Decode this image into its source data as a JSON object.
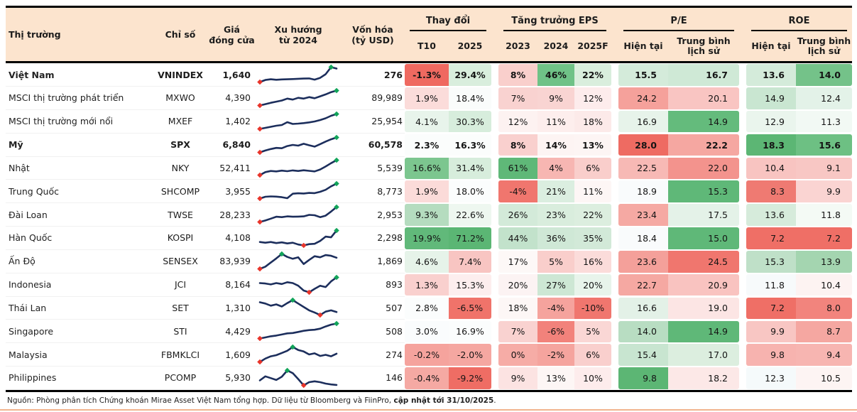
{
  "colors": {
    "header_bg": "#fce4ce",
    "table_border": "#000000",
    "spark_line": "#1c2e5c",
    "spark_max_marker": "#12a45a",
    "spark_min_marker": "#e8342a",
    "footer_rule": "#f2b48e"
  },
  "table": {
    "columns": {
      "market": "Thị trường",
      "index": "Chỉ số",
      "price": "Giá\nđóng cửa",
      "trend": "Xu hướng\ntừ 2024",
      "mcap": "Vốn hóa\n(tỷ USD)",
      "groups": [
        {
          "label": "Thay đổi",
          "cols": [
            "T10",
            "2025"
          ]
        },
        {
          "label": "Tăng trưởng EPS",
          "cols": [
            "2023",
            "2024",
            "2025F"
          ]
        },
        {
          "label": "P/E",
          "cols": [
            "Hiện tại",
            "Trung bình\nlịch sử"
          ]
        },
        {
          "label": "ROE",
          "cols": [
            "Hiện tại",
            "Trung bình\nlịch sử"
          ]
        }
      ]
    },
    "rows": [
      {
        "market": "Việt Nam",
        "bold": true,
        "index": "VNINDEX",
        "price": "1,640",
        "mcap": "276",
        "spark": [
          1.0,
          2.2,
          2.6,
          2.3,
          2.5,
          2.6,
          2.7,
          2.9,
          3.0,
          3.1,
          2.4,
          3.4,
          5.5,
          9.6,
          8.8
        ],
        "heat": [
          [
            "-1.3%",
            "#ef6960"
          ],
          [
            "29.4%",
            "#d9eedd"
          ],
          [
            "8%",
            "#f9cfcc"
          ],
          [
            "46%",
            "#6fc287"
          ],
          [
            "22%",
            "#d9eedd"
          ],
          [
            "15.5",
            "#d4ebda"
          ],
          [
            "16.7",
            "#cfe9d6"
          ],
          [
            "13.6",
            "#d4ebda"
          ],
          [
            "14.0",
            "#74c289"
          ]
        ]
      },
      {
        "market": "MSCI thị trường phát triển",
        "bold": false,
        "index": "MXWO",
        "price": "4,390",
        "mcap": "89,989",
        "spark": [
          0.8,
          1.5,
          2.2,
          2.8,
          3.4,
          4.4,
          3.9,
          4.8,
          4.4,
          5.2,
          4.6,
          5.6,
          6.6,
          7.8,
          8.6
        ],
        "heat": [
          [
            "1.9%",
            "#fbdcda"
          ],
          [
            "18.4%",
            "#fafcfb"
          ],
          [
            "7%",
            "#f9d2d0"
          ],
          [
            "9%",
            "#f9d4d2"
          ],
          [
            "12%",
            "#fdecec"
          ],
          [
            "24.2",
            "#f5a19b"
          ],
          [
            "20.1",
            "#f9c5c2"
          ],
          [
            "14.9",
            "#c9e6d1"
          ],
          [
            "12.4",
            "#e3f2e8"
          ]
        ]
      },
      {
        "market": "MSCI thị trường mới nổi",
        "bold": false,
        "index": "MXEF",
        "price": "1,402",
        "mcap": "25,954",
        "spark": [
          0.6,
          1.2,
          1.8,
          2.4,
          2.8,
          4.4,
          3.4,
          3.6,
          3.9,
          4.3,
          4.8,
          5.6,
          6.6,
          8.0,
          9.0
        ],
        "heat": [
          [
            "4.1%",
            "#e8f4eb"
          ],
          [
            "30.3%",
            "#d7eddc"
          ],
          [
            "12%",
            "#fdf2f1"
          ],
          [
            "11%",
            "#fdeeed"
          ],
          [
            "18%",
            "#fceae9"
          ],
          [
            "16.9",
            "#e7f3ea"
          ],
          [
            "14.9",
            "#64bb7c"
          ],
          [
            "12.9",
            "#eaf5ed"
          ],
          [
            "11.3",
            "#f2f9f4"
          ]
        ]
      },
      {
        "market": "Mỹ",
        "bold": true,
        "index": "SPX",
        "price": "6,840",
        "mcap": "60,578",
        "spark": [
          0.8,
          1.8,
          2.6,
          3.2,
          3.0,
          4.2,
          4.8,
          4.4,
          5.4,
          4.6,
          3.9,
          5.2,
          6.6,
          7.8,
          8.8
        ],
        "heat": [
          [
            "2.3%",
            "#fbfdfc"
          ],
          [
            "16.3%",
            "#fbfdfc"
          ],
          [
            "8%",
            "#f9d0ce"
          ],
          [
            "14%",
            "#fdf4f3"
          ],
          [
            "13%",
            "#fdf5f4"
          ],
          [
            "28.0",
            "#ee6b62"
          ],
          [
            "22.2",
            "#f5a7a1"
          ],
          [
            "18.3",
            "#5cb674"
          ],
          [
            "15.6",
            "#6dc083"
          ]
        ]
      },
      {
        "market": "Nhật",
        "bold": false,
        "index": "NKY",
        "price": "52,411",
        "mcap": "5,539",
        "spark": [
          1.2,
          2.8,
          3.4,
          3.2,
          3.6,
          3.3,
          3.7,
          3.4,
          3.8,
          3.5,
          3.2,
          4.2,
          5.8,
          7.6,
          9.2
        ],
        "heat": [
          [
            "16.6%",
            "#7cc68f"
          ],
          [
            "31.4%",
            "#d7eddc"
          ],
          [
            "61%",
            "#5fb878"
          ],
          [
            "4%",
            "#f7b6b2"
          ],
          [
            "6%",
            "#f9cecb"
          ],
          [
            "22.5",
            "#f7b9b5"
          ],
          [
            "22.0",
            "#f3938d"
          ],
          [
            "10.4",
            "#f8c4c1"
          ],
          [
            "9.1",
            "#f8c7c4"
          ]
        ]
      },
      {
        "market": "Trung Quốc",
        "bold": false,
        "index": "SHCOMP",
        "price": "3,955",
        "mcap": "8,773",
        "spark": [
          0.9,
          1.8,
          2.0,
          1.9,
          1.6,
          1.1,
          3.4,
          3.6,
          3.5,
          3.8,
          3.7,
          4.4,
          5.4,
          7.2,
          8.6
        ],
        "heat": [
          [
            "1.9%",
            "#fbdbd9"
          ],
          [
            "18.0%",
            "#fbfdfd"
          ],
          [
            "-4%",
            "#f0766e"
          ],
          [
            "21%",
            "#dbeee0"
          ],
          [
            "11%",
            "#fdf6f5"
          ],
          [
            "18.9",
            "#f9fbfc"
          ],
          [
            "15.3",
            "#5fb878"
          ],
          [
            "8.3",
            "#ef7a72"
          ],
          [
            "9.9",
            "#fad4d2"
          ]
        ]
      },
      {
        "market": "Đài Loan",
        "bold": false,
        "index": "TWSE",
        "price": "28,233",
        "mcap": "2,953",
        "spark": [
          0.8,
          1.6,
          2.6,
          3.6,
          3.4,
          3.8,
          3.6,
          3.7,
          3.8,
          4.6,
          4.4,
          3.4,
          4.2,
          6.4,
          8.8
        ],
        "heat": [
          [
            "9.3%",
            "#b5dcbf"
          ],
          [
            "22.6%",
            "#eef7f0"
          ],
          [
            "26%",
            "#d3ead9"
          ],
          [
            "23%",
            "#d9eddd"
          ],
          [
            "22%",
            "#dceedf"
          ],
          [
            "23.4",
            "#f5a9a3"
          ],
          [
            "17.5",
            "#e4f2e8"
          ],
          [
            "13.6",
            "#d6ebdb"
          ],
          [
            "11.8",
            "#f4faf5"
          ]
        ]
      },
      {
        "market": "Hàn Quốc",
        "bold": false,
        "index": "KOSPI",
        "price": "4,108",
        "mcap": "2,298",
        "spark": [
          3.0,
          2.6,
          3.0,
          2.4,
          2.8,
          2.2,
          2.6,
          1.6,
          1.1,
          1.8,
          2.0,
          3.6,
          6.0,
          5.6,
          9.4
        ],
        "heat": [
          [
            "19.9%",
            "#61b97a"
          ],
          [
            "71.2%",
            "#5bb674"
          ],
          [
            "44%",
            "#c2e2cb"
          ],
          [
            "36%",
            "#cfe8d6"
          ],
          [
            "35%",
            "#d2e9d8"
          ],
          [
            "18.4",
            "#f9fbfc"
          ],
          [
            "15.0",
            "#5fb878"
          ],
          [
            "7.2",
            "#ef6f66"
          ],
          [
            "7.2",
            "#ef6f66"
          ]
        ]
      },
      {
        "market": "Ấn Độ",
        "bold": false,
        "index": "SENSEX",
        "price": "83,939",
        "mcap": "1,869",
        "spark": [
          0.8,
          2.0,
          4.2,
          6.4,
          8.8,
          7.2,
          6.2,
          7.0,
          3.4,
          5.6,
          7.6,
          7.0,
          8.2,
          7.8,
          6.8
        ],
        "heat": [
          [
            "4.6%",
            "#e6f3e9"
          ],
          [
            "7.4%",
            "#f8c5c2"
          ],
          [
            "17%",
            "#fdf8f7"
          ],
          [
            "5%",
            "#f9cecb"
          ],
          [
            "16%",
            "#fbdcda"
          ],
          [
            "23.6",
            "#f4a09a"
          ],
          [
            "24.5",
            "#f0766e"
          ],
          [
            "15.3",
            "#bfe0c8"
          ],
          [
            "13.9",
            "#a4d5b0"
          ]
        ]
      },
      {
        "market": "Indonesia",
        "bold": false,
        "index": "JCI",
        "price": "8,164",
        "mcap": "893",
        "spark": [
          5.6,
          5.4,
          5.0,
          5.6,
          5.2,
          6.0,
          5.6,
          4.4,
          2.2,
          1.4,
          3.0,
          4.4,
          3.8,
          6.4,
          8.2
        ],
        "heat": [
          [
            "1.3%",
            "#f9d0ce"
          ],
          [
            "15.3%",
            "#fdeeee"
          ],
          [
            "20%",
            "#fcf3f3"
          ],
          [
            "27%",
            "#cde7d4"
          ],
          [
            "20%",
            "#e8f4eb"
          ],
          [
            "22.7",
            "#f5a8a2"
          ],
          [
            "20.9",
            "#f9c3c0"
          ],
          [
            "11.8",
            "#f7fafb"
          ],
          [
            "10.4",
            "#fdf3f2"
          ]
        ]
      },
      {
        "market": "Thái Lan",
        "bold": false,
        "index": "SET",
        "price": "1,310",
        "mcap": "507",
        "spark": [
          7.2,
          6.6,
          5.6,
          6.2,
          5.2,
          6.8,
          8.2,
          6.6,
          5.0,
          3.4,
          2.4,
          1.2,
          2.8,
          3.4,
          2.6
        ],
        "heat": [
          [
            "2.8%",
            "#fbfdfd"
          ],
          [
            "-6.5%",
            "#f0736a"
          ],
          [
            "18%",
            "#fdf7f6"
          ],
          [
            "-4%",
            "#f5a39d"
          ],
          [
            "-10%",
            "#f0766e"
          ],
          [
            "16.6",
            "#e3f1e7"
          ],
          [
            "19.0",
            "#fce5e4"
          ],
          [
            "7.2",
            "#ef6f66"
          ],
          [
            "8.0",
            "#f2847d"
          ]
        ]
      },
      {
        "market": "Singapore",
        "bold": false,
        "index": "STI",
        "price": "4,429",
        "mcap": "508",
        "spark": [
          0.8,
          1.4,
          2.0,
          2.4,
          3.0,
          3.6,
          3.8,
          4.4,
          5.0,
          5.4,
          5.6,
          6.2,
          7.4,
          8.4,
          9.0
        ],
        "heat": [
          [
            "3.0%",
            "#fafcfd"
          ],
          [
            "16.9%",
            "#fbfdfd"
          ],
          [
            "7%",
            "#f9d2d0"
          ],
          [
            "-6%",
            "#f2827b"
          ],
          [
            "5%",
            "#fad7d5"
          ],
          [
            "14.0",
            "#b8ddc2"
          ],
          [
            "14.9",
            "#5fb878"
          ],
          [
            "9.9",
            "#f8c6c3"
          ],
          [
            "8.7",
            "#f5a7a1"
          ]
        ]
      },
      {
        "market": "Malaysia",
        "bold": false,
        "index": "FBMKLCI",
        "price": "1,609",
        "mcap": "274",
        "spark": [
          0.6,
          2.4,
          3.6,
          4.2,
          5.4,
          6.6,
          8.6,
          7.0,
          6.2,
          4.6,
          5.2,
          3.8,
          4.4,
          3.6,
          5.0
        ],
        "heat": [
          [
            "-0.2%",
            "#f5a39d"
          ],
          [
            "-2.0%",
            "#f5a7a1"
          ],
          [
            "0%",
            "#f6aca6"
          ],
          [
            "-2%",
            "#f5a49e"
          ],
          [
            "6%",
            "#f9cfcd"
          ],
          [
            "15.4",
            "#c8e5d0"
          ],
          [
            "17.0",
            "#dceedf"
          ],
          [
            "9.8",
            "#f7b3af"
          ],
          [
            "9.4",
            "#f7b5b1"
          ]
        ]
      },
      {
        "market": "Philippines",
        "bold": false,
        "index": "PCOMP",
        "price": "5,930",
        "mcap": "146",
        "spark": [
          3.4,
          5.2,
          4.4,
          3.6,
          5.0,
          7.8,
          6.6,
          4.0,
          1.2,
          2.6,
          3.0,
          2.6,
          2.0,
          1.6,
          1.4
        ],
        "heat": [
          [
            "-0.4%",
            "#f5a9a3"
          ],
          [
            "-9.2%",
            "#ef6d64"
          ],
          [
            "9%",
            "#fce3e2"
          ],
          [
            "13%",
            "#fdf6f5"
          ],
          [
            "10%",
            "#fdecec"
          ],
          [
            "9.8",
            "#5cb674"
          ],
          [
            "18.2",
            "#fce8e7"
          ],
          [
            "12.3",
            "#f5fafb"
          ],
          [
            "10.5",
            "#fdf4f3"
          ]
        ]
      }
    ]
  },
  "footer": {
    "source_prefix": "Nguồn: Phòng phân tích Chứng khoán Mirae Asset Việt Nam tổng hợp. Dữ liệu từ Bloomberg và FiinPro, ",
    "source_bold": "cập nhật tới 31/10/2025",
    "source_suffix": "."
  },
  "chart_data": {
    "type": "table",
    "title": "",
    "sparkline_column": "Xu hướng từ 2024 (navy price line per row; green diamond = maximum, red diamond = minimum)",
    "columns": [
      "Thị trường",
      "Chỉ số",
      "Giá đóng cửa",
      "Vốn hóa (tỷ USD)",
      "Thay đổi T10",
      "Thay đổi 2025",
      "Tăng trưởng EPS 2023",
      "Tăng trưởng EPS 2024",
      "Tăng trưởng EPS 2025F",
      "P/E Hiện tại",
      "P/E Trung bình lịch sử",
      "ROE Hiện tại",
      "ROE Trung bình lịch sử"
    ],
    "rows": [
      [
        "Việt Nam",
        "VNINDEX",
        "1,640",
        "276",
        "-1.3%",
        "29.4%",
        "8%",
        "46%",
        "22%",
        "15.5",
        "16.7",
        "13.6",
        "14.0"
      ],
      [
        "MSCI thị trường phát triển",
        "MXWO",
        "4,390",
        "89,989",
        "1.9%",
        "18.4%",
        "7%",
        "9%",
        "12%",
        "24.2",
        "20.1",
        "14.9",
        "12.4"
      ],
      [
        "MSCI thị trường mới nổi",
        "MXEF",
        "1,402",
        "25,954",
        "4.1%",
        "30.3%",
        "12%",
        "11%",
        "18%",
        "16.9",
        "14.9",
        "12.9",
        "11.3"
      ],
      [
        "Mỹ",
        "SPX",
        "6,840",
        "60,578",
        "2.3%",
        "16.3%",
        "8%",
        "14%",
        "13%",
        "28.0",
        "22.2",
        "18.3",
        "15.6"
      ],
      [
        "Nhật",
        "NKY",
        "52,411",
        "5,539",
        "16.6%",
        "31.4%",
        "61%",
        "4%",
        "6%",
        "22.5",
        "22.0",
        "10.4",
        "9.1"
      ],
      [
        "Trung Quốc",
        "SHCOMP",
        "3,955",
        "8,773",
        "1.9%",
        "18.0%",
        "-4%",
        "21%",
        "11%",
        "18.9",
        "15.3",
        "8.3",
        "9.9"
      ],
      [
        "Đài Loan",
        "TWSE",
        "28,233",
        "2,953",
        "9.3%",
        "22.6%",
        "26%",
        "23%",
        "22%",
        "23.4",
        "17.5",
        "13.6",
        "11.8"
      ],
      [
        "Hàn Quốc",
        "KOSPI",
        "4,108",
        "2,298",
        "19.9%",
        "71.2%",
        "44%",
        "36%",
        "35%",
        "18.4",
        "15.0",
        "7.2",
        "7.2"
      ],
      [
        "Ấn Độ",
        "SENSEX",
        "83,939",
        "1,869",
        "4.6%",
        "7.4%",
        "17%",
        "5%",
        "16%",
        "23.6",
        "24.5",
        "15.3",
        "13.9"
      ],
      [
        "Indonesia",
        "JCI",
        "8,164",
        "893",
        "1.3%",
        "15.3%",
        "20%",
        "27%",
        "20%",
        "22.7",
        "20.9",
        "11.8",
        "10.4"
      ],
      [
        "Thái Lan",
        "SET",
        "1,310",
        "507",
        "2.8%",
        "-6.5%",
        "18%",
        "-4%",
        "-10%",
        "16.6",
        "19.0",
        "7.2",
        "8.0"
      ],
      [
        "Singapore",
        "STI",
        "4,429",
        "508",
        "3.0%",
        "16.9%",
        "7%",
        "-6%",
        "5%",
        "14.0",
        "14.9",
        "9.9",
        "8.7"
      ],
      [
        "Malaysia",
        "FBMKLCI",
        "1,609",
        "274",
        "-0.2%",
        "-2.0%",
        "0%",
        "-2%",
        "6%",
        "15.4",
        "17.0",
        "9.8",
        "9.4"
      ],
      [
        "Philippines",
        "PCOMP",
        "5,930",
        "146",
        "-0.4%",
        "-9.2%",
        "9%",
        "13%",
        "10%",
        "9.8",
        "18.2",
        "12.3",
        "10.5"
      ]
    ]
  }
}
